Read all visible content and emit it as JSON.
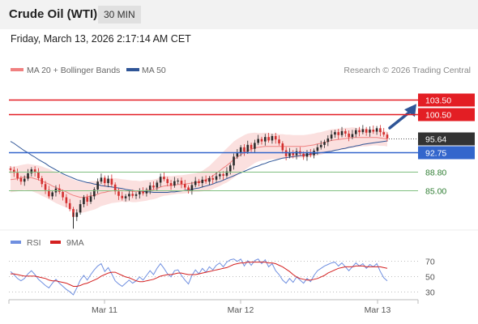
{
  "header": {
    "instrument": "Crude Oil (WTI)",
    "timeframe": "30 MIN"
  },
  "timestamp": "Friday, March 13, 2026 2:17:14 AM CET",
  "credit": "Research © 2026 Trading Central",
  "colors": {
    "resistance": "#e31e24",
    "support": "#2e8b2e",
    "pivot": "#3366cc",
    "price_tag": "#333333",
    "candle_up": "#2b2b2b",
    "candle_down": "#d32f2f",
    "ma20": "#f08080",
    "ma50": "#2f5597",
    "bollinger_fill": "#fbe0df",
    "rsi": "#6f8fe0",
    "rsi_ma": "#d42020",
    "arrow": "#2f5597"
  },
  "chart_data": [
    {
      "type": "candlestick",
      "legend": [
        {
          "label": "MA 20 + Bollinger Bands",
          "color": "#f08080"
        },
        {
          "label": "MA 50",
          "color": "#2f5597"
        }
      ],
      "levels": [
        {
          "value": 103.5,
          "label": "103.50",
          "kind": "resistance"
        },
        {
          "value": 100.5,
          "label": "100.50",
          "kind": "resistance"
        },
        {
          "value": 95.64,
          "label": "95.64",
          "kind": "last-price"
        },
        {
          "value": 92.75,
          "label": "92.75",
          "kind": "pivot"
        },
        {
          "value": 88.8,
          "label": "88.80",
          "kind": "support"
        },
        {
          "value": 85.0,
          "label": "85.00",
          "kind": "support"
        }
      ],
      "x_ticks": [
        "Mar 11",
        "Mar 12",
        "Mar 13"
      ],
      "ylim": [
        76.75,
        108.0
      ],
      "close": [
        89.2,
        88.6,
        87.5,
        86.8,
        87.4,
        88.5,
        89.3,
        88.7,
        87.5,
        86.3,
        85.1,
        83.8,
        84.6,
        85.4,
        84.7,
        83.6,
        82.4,
        81.2,
        79.6,
        80.5,
        82.2,
        83.6,
        82.7,
        83.8,
        85.2,
        86.8,
        87.6,
        86.5,
        87.4,
        86.2,
        84.8,
        83.9,
        83.4,
        83.8,
        84.3,
        83.9,
        84.2,
        84.8,
        84.4,
        85.1,
        86.0,
        85.6,
        86.6,
        87.8,
        87.3,
        86.5,
        86.0,
        86.9,
        87.0,
        86.3,
        85.6,
        85.0,
        86.1,
        86.9,
        86.5,
        87.2,
        86.8,
        87.5,
        87.2,
        87.9,
        88.3,
        88.0,
        88.9,
        90.1,
        91.9,
        92.6,
        93.8,
        92.9,
        94.3,
        93.5,
        94.7,
        95.5,
        95.0,
        95.9,
        95.2,
        96.1,
        95.4,
        94.6,
        93.2,
        92.0,
        92.8,
        92.2,
        93.0,
        92.5,
        91.9,
        92.6,
        92.2,
        93.1,
        93.8,
        94.3,
        94.9,
        95.6,
        96.4,
        96.9,
        96.3,
        97.1,
        96.6,
        95.9,
        96.5,
        97.3,
        96.9,
        97.5,
        96.8,
        97.4,
        97.0,
        97.7,
        96.9,
        96.4,
        95.64
      ],
      "ma20": [
        87.2,
        87.3,
        87.4,
        87.6,
        87.7,
        87.7,
        87.6,
        87.4,
        87.2,
        86.9,
        86.6,
        86.3,
        85.9,
        85.6,
        85.3,
        85.0,
        84.7,
        84.3,
        84.0,
        83.8,
        83.6,
        83.6,
        83.7,
        83.9,
        84.0,
        84.2,
        84.5,
        84.6,
        84.8,
        84.9,
        85.0,
        85.0,
        85.0,
        84.9,
        84.9,
        84.8,
        84.8,
        84.8,
        84.9,
        85.0,
        85.1,
        85.2,
        85.4,
        85.7,
        85.9,
        86.0,
        86.0,
        86.1,
        86.2,
        86.2,
        86.3,
        86.4,
        86.5,
        86.6,
        86.7,
        86.9,
        87.2,
        87.5,
        88.0,
        88.5,
        89.0,
        89.6,
        90.1,
        90.7,
        91.3,
        91.8,
        92.3,
        92.7,
        93.1,
        93.4,
        93.7,
        93.8,
        93.9,
        94.0,
        94.0,
        94.0,
        94.0,
        94.0,
        94.0,
        94.0,
        94.0,
        94.0,
        94.0,
        94.0,
        94.0,
        94.1,
        94.2,
        94.3,
        94.5,
        94.6,
        94.8,
        95.0,
        95.2,
        95.3,
        95.4,
        95.5,
        95.6,
        95.7,
        95.8,
        95.8,
        95.8,
        95.8,
        95.8,
        95.8,
        95.8,
        95.8,
        95.7,
        95.6,
        95.5
      ],
      "bb_width": [
        2.6,
        2.6,
        2.6,
        2.6,
        2.6,
        2.7,
        2.7,
        2.8,
        2.9,
        3.0,
        3.0,
        3.1,
        3.1,
        3.2,
        3.2,
        3.2,
        3.2,
        3.2,
        3.2,
        3.2,
        3.2,
        3.1,
        3.0,
        3.0,
        2.9,
        2.8,
        2.7,
        2.6,
        2.6,
        2.5,
        2.5,
        2.4,
        2.3,
        2.3,
        2.2,
        2.2,
        2.2,
        2.1,
        2.1,
        2.1,
        2.0,
        2.0,
        2.0,
        2.0,
        2.0,
        2.0,
        1.9,
        1.9,
        1.9,
        1.9,
        1.9,
        1.9,
        1.9,
        1.9,
        2.0,
        2.1,
        2.3,
        2.5,
        2.7,
        2.9,
        3.1,
        3.3,
        3.5,
        3.6,
        3.7,
        3.7,
        3.6,
        3.6,
        3.5,
        3.3,
        3.1,
        2.9,
        2.8,
        2.8,
        2.7,
        2.6,
        2.6,
        2.5,
        2.5,
        2.4,
        2.4,
        2.3,
        2.3,
        2.3,
        2.3,
        2.3,
        2.3,
        2.3,
        2.3,
        2.3,
        2.3,
        2.3,
        2.3,
        2.2,
        2.2,
        2.2,
        2.2,
        2.1,
        2.1,
        2.0,
        1.9,
        1.8,
        1.8,
        1.7,
        1.6,
        1.6,
        1.6,
        1.5,
        1.5
      ],
      "ma50": [
        95.0,
        94.6,
        94.1,
        93.6,
        93.1,
        92.7,
        92.2,
        91.8,
        91.3,
        90.9,
        90.5,
        90.0,
        89.6,
        89.2,
        88.8,
        88.4,
        88.1,
        87.8,
        87.5,
        87.2,
        87.0,
        86.8,
        86.6,
        86.5,
        86.3,
        86.2,
        86.0,
        85.9,
        85.8,
        85.7,
        85.6,
        85.5,
        85.4,
        85.2,
        85.1,
        85.0,
        84.9,
        84.8,
        84.8,
        84.7,
        84.7,
        84.6,
        84.6,
        84.6,
        84.6,
        84.6,
        84.7,
        84.7,
        84.8,
        84.9,
        85.0,
        85.1,
        85.2,
        85.4,
        85.5,
        85.7,
        85.9,
        86.1,
        86.3,
        86.6,
        86.8,
        87.1,
        87.4,
        87.7,
        88.0,
        88.3,
        88.6,
        88.9,
        89.2,
        89.5,
        89.8,
        90.0,
        90.3,
        90.5,
        90.8,
        91.0,
        91.2,
        91.4,
        91.6,
        91.7,
        91.8,
        91.9,
        92.0,
        92.1,
        92.2,
        92.3,
        92.4,
        92.5,
        92.6,
        92.7,
        92.8,
        92.9,
        93.0,
        93.2,
        93.3,
        93.5,
        93.6,
        93.8,
        93.9,
        94.1,
        94.2,
        94.4,
        94.5,
        94.6,
        94.7,
        94.8,
        94.9,
        95.0,
        95.1
      ]
    },
    {
      "type": "line",
      "legend": [
        {
          "label": "RSI",
          "color": "#6f8fe0"
        },
        {
          "label": "9MA",
          "color": "#d42020"
        }
      ],
      "y_ticks": [
        70,
        50,
        30
      ],
      "ylim": [
        25,
        78
      ],
      "rsi": [
        56,
        52,
        47,
        44,
        47,
        53,
        57,
        52,
        46,
        42,
        38,
        35,
        41,
        46,
        41,
        37,
        33,
        30,
        26,
        35,
        45,
        51,
        45,
        52,
        58,
        63,
        66,
        56,
        61,
        53,
        44,
        40,
        37,
        41,
        45,
        41,
        44,
        49,
        45,
        51,
        57,
        52,
        60,
        66,
        60,
        53,
        49,
        57,
        58,
        51,
        45,
        40,
        51,
        58,
        53,
        60,
        55,
        62,
        58,
        64,
        67,
        62,
        68,
        71,
        72,
        69,
        72,
        63,
        70,
        64,
        70,
        72,
        66,
        71,
        62,
        66,
        57,
        52,
        45,
        41,
        47,
        42,
        49,
        45,
        41,
        47,
        43,
        51,
        57,
        60,
        63,
        65,
        67,
        68,
        63,
        67,
        62,
        57,
        62,
        67,
        63,
        66,
        60,
        65,
        62,
        66,
        56,
        48,
        44
      ],
      "rsi_ma": [
        53,
        53,
        52,
        51,
        50,
        50,
        50,
        50,
        49,
        48,
        47,
        45,
        44,
        44,
        43,
        42,
        41,
        39,
        37,
        37,
        38,
        40,
        41,
        43,
        45,
        47,
        50,
        52,
        54,
        55,
        55,
        53,
        51,
        49,
        48,
        46,
        44,
        43,
        43,
        44,
        45,
        46,
        48,
        50,
        51,
        52,
        52,
        53,
        54,
        54,
        53,
        52,
        52,
        52,
        53,
        54,
        55,
        56,
        57,
        58,
        59,
        60,
        61,
        63,
        65,
        66,
        67,
        67,
        68,
        68,
        68,
        68,
        68,
        68,
        67,
        67,
        66,
        64,
        62,
        59,
        56,
        52,
        49,
        47,
        46,
        45,
        45,
        46,
        47,
        49,
        51,
        54,
        56,
        58,
        60,
        61,
        62,
        62,
        62,
        63,
        63,
        63,
        62,
        62,
        62,
        62,
        62,
        61,
        60
      ]
    }
  ]
}
